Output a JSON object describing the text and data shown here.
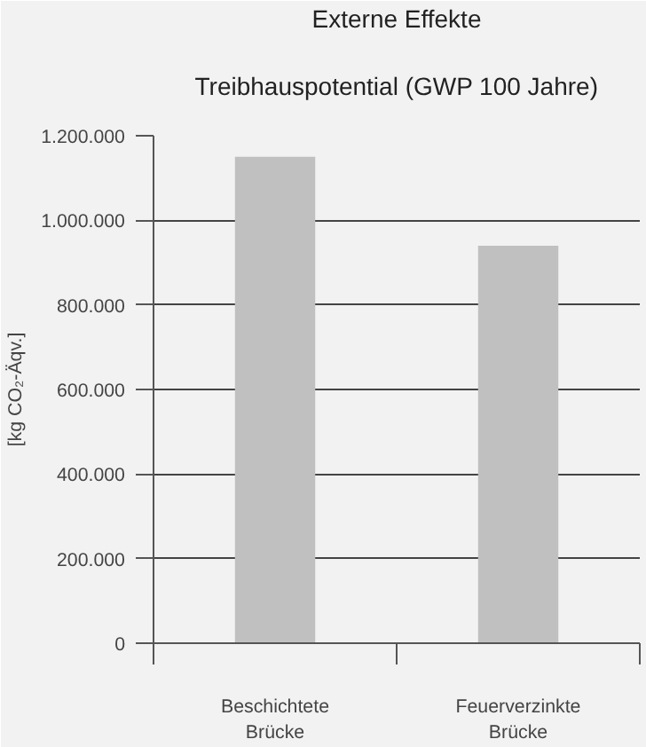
{
  "chart_data": {
    "type": "bar",
    "title": "Externe Effekte",
    "subtitle": "Treibhauspotential (GWP 100 Jahre)",
    "ylabel": "[kg CO₂-Äqv.]",
    "categories": [
      "Beschichtete\nBrücke",
      "Feuerverzinkte\nBrücke"
    ],
    "values": [
      1150000,
      940000
    ],
    "color": "#c0c0c0",
    "ylim": [
      0,
      1200000
    ],
    "yticks": [
      {
        "value": 0,
        "label": "0"
      },
      {
        "value": 200000,
        "label": "200.000"
      },
      {
        "value": 400000,
        "label": "400.000"
      },
      {
        "value": 600000,
        "label": "600.000"
      },
      {
        "value": 800000,
        "label": "800.000"
      },
      {
        "value": 1000000,
        "label": "1.000.000"
      },
      {
        "value": 1200000,
        "label": "1.200.000"
      }
    ],
    "grid": "y"
  }
}
